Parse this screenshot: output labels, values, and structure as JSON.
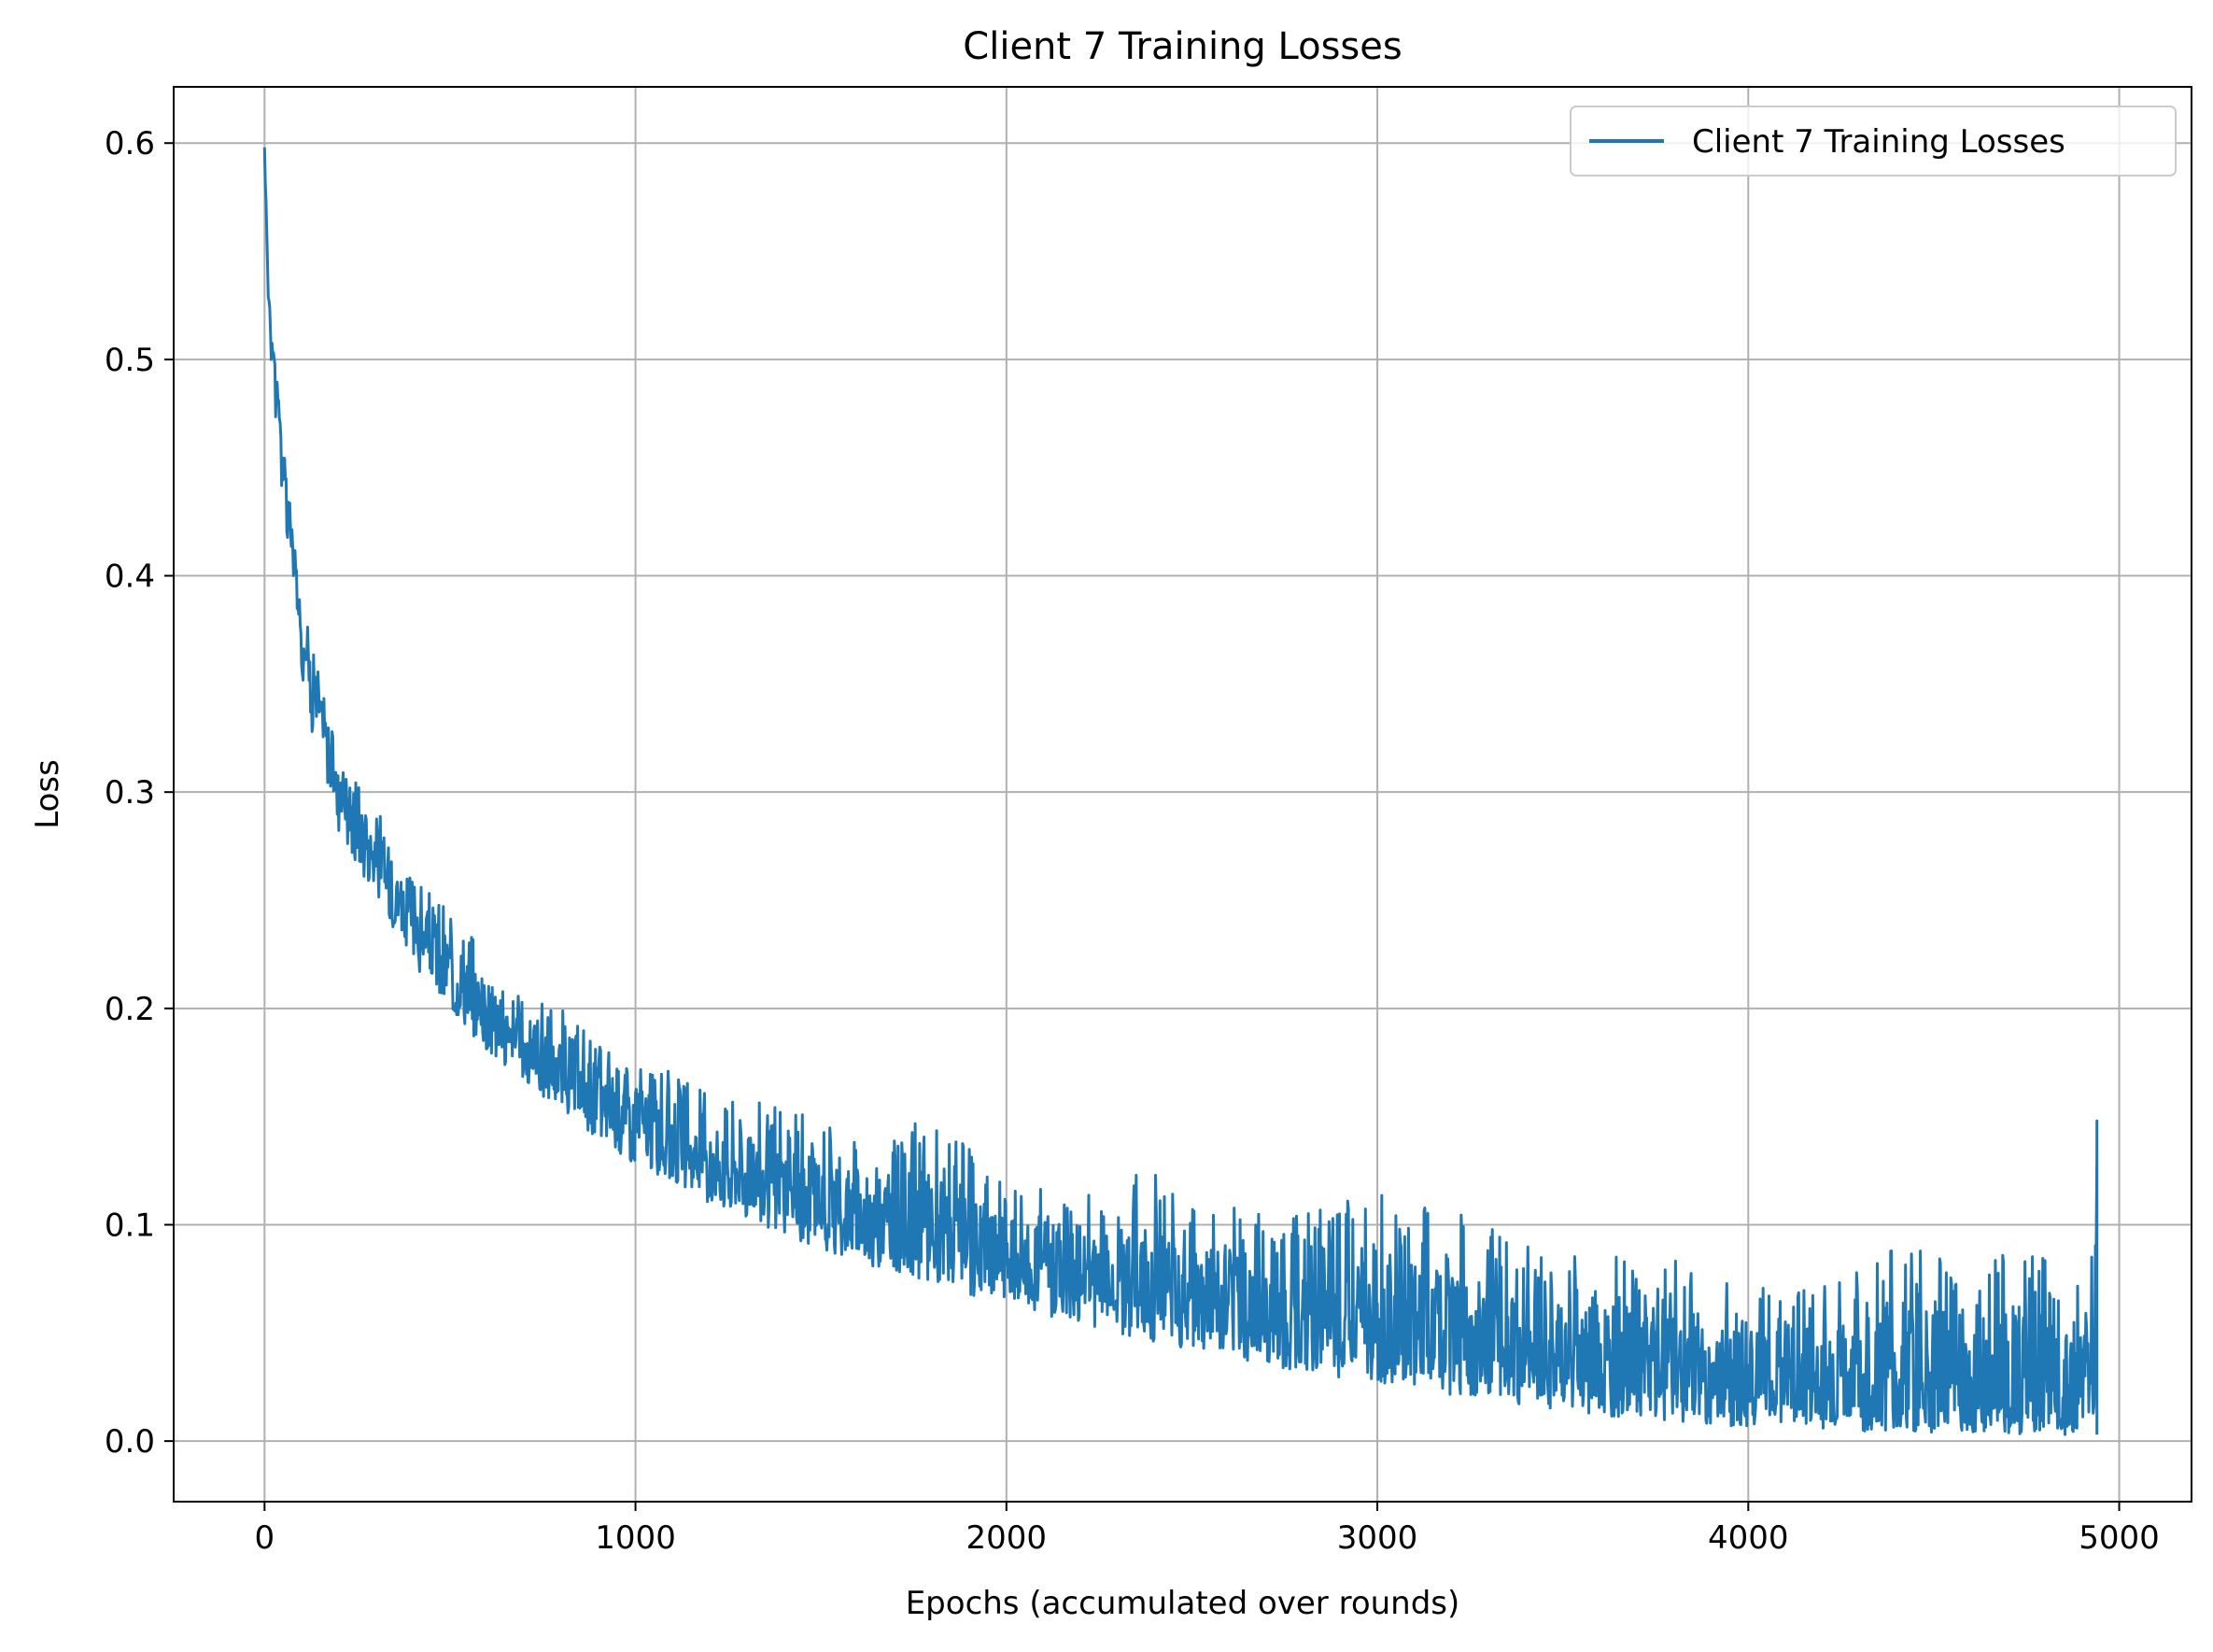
{
  "chart_data": {
    "type": "line",
    "title": "Client 7 Training Losses",
    "xlabel": "Epochs (accumulated over rounds)",
    "ylabel": "Loss",
    "xlim": [
      -245,
      5195
    ],
    "ylim": [
      -0.028,
      0.626
    ],
    "x_ticks": [
      0,
      1000,
      2000,
      3000,
      4000,
      5000
    ],
    "x_tick_labels": [
      "0",
      "1000",
      "2000",
      "3000",
      "4000",
      "5000"
    ],
    "y_ticks": [
      0.0,
      0.1,
      0.2,
      0.3,
      0.4,
      0.5,
      0.6
    ],
    "y_tick_labels": [
      "0.0",
      "0.1",
      "0.2",
      "0.3",
      "0.4",
      "0.5",
      "0.6"
    ],
    "grid": true,
    "legend": {
      "position": "upper-right",
      "entries": [
        {
          "label": "Client 7 Training Losses",
          "color": "#1f77b4"
        }
      ]
    },
    "series": [
      {
        "name": "Client 7 Training Losses",
        "color": "#1f77b4",
        "x": [
          0,
          10,
          25,
          50,
          75,
          100,
          150,
          200,
          300,
          400,
          500,
          600,
          700,
          800,
          900,
          1000,
          1200,
          1400,
          1600,
          1800,
          2000,
          2200,
          2400,
          2600,
          2800,
          3000,
          3200,
          3400,
          3600,
          3800,
          4000,
          4200,
          4400,
          4600,
          4800,
          4920,
          4940
        ],
        "mean": [
          0.598,
          0.53,
          0.5,
          0.45,
          0.41,
          0.37,
          0.33,
          0.3,
          0.265,
          0.237,
          0.213,
          0.192,
          0.176,
          0.163,
          0.151,
          0.14,
          0.123,
          0.109,
          0.097,
          0.087,
          0.078,
          0.07,
          0.062,
          0.055,
          0.048,
          0.042,
          0.037,
          0.032,
          0.028,
          0.024,
          0.021,
          0.019,
          0.017,
          0.016,
          0.015,
          0.015,
          0.06
        ],
        "lower": [
          0.598,
          0.51,
          0.48,
          0.43,
          0.39,
          0.35,
          0.31,
          0.28,
          0.25,
          0.22,
          0.2,
          0.18,
          0.165,
          0.152,
          0.14,
          0.128,
          0.11,
          0.095,
          0.083,
          0.072,
          0.062,
          0.054,
          0.046,
          0.038,
          0.032,
          0.026,
          0.021,
          0.016,
          0.012,
          0.009,
          0.006,
          0.005,
          0.004,
          0.004,
          0.003,
          0.003,
          0.003
        ],
        "upper": [
          0.598,
          0.54,
          0.51,
          0.46,
          0.43,
          0.39,
          0.355,
          0.32,
          0.295,
          0.26,
          0.245,
          0.225,
          0.205,
          0.2,
          0.185,
          0.18,
          0.16,
          0.155,
          0.14,
          0.15,
          0.12,
          0.115,
          0.128,
          0.11,
          0.105,
          0.116,
          0.108,
          0.09,
          0.088,
          0.085,
          0.07,
          0.075,
          0.095,
          0.085,
          0.09,
          0.065,
          0.148
        ]
      }
    ]
  }
}
